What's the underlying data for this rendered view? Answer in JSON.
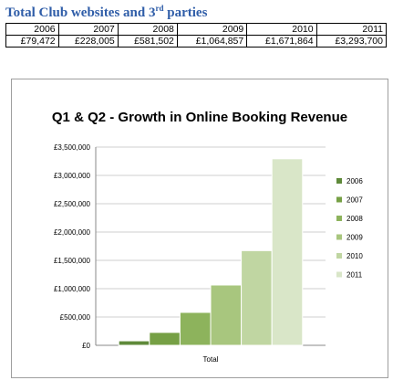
{
  "heading": {
    "main": "Total Club websites and 3",
    "sup": "rd",
    "rest": " parties"
  },
  "table": {
    "years": [
      "2006",
      "2007",
      "2008",
      "2009",
      "2010",
      "2011"
    ],
    "values": [
      "£79,472",
      "£228,005",
      "£581,502",
      "£1,064,857",
      "£1,671,864",
      "£3,293,700"
    ]
  },
  "chart_data": {
    "type": "bar",
    "title": "Q1 & Q2 - Growth in Online Booking Revenue",
    "categories": [
      "Total"
    ],
    "xlabel": "",
    "ylabel": "",
    "ylim": [
      0,
      3500000
    ],
    "yticks": [
      "£0",
      "£500,000",
      "£1,000,000",
      "£1,500,000",
      "£2,000,000",
      "£2,500,000",
      "£3,000,000",
      "£3,500,000"
    ],
    "series": [
      {
        "name": "2006",
        "values": [
          79472
        ]
      },
      {
        "name": "2007",
        "values": [
          228005
        ]
      },
      {
        "name": "2008",
        "values": [
          581502
        ]
      },
      {
        "name": "2009",
        "values": [
          1064857
        ]
      },
      {
        "name": "2010",
        "values": [
          1671864
        ]
      },
      {
        "name": "2011",
        "values": [
          3293700
        ]
      }
    ],
    "colors": [
      "#5f8a3a",
      "#76a045",
      "#8db35c",
      "#a8c67e",
      "#c0d6a2",
      "#d9e6c8"
    ],
    "grid": true,
    "legend": "right"
  }
}
